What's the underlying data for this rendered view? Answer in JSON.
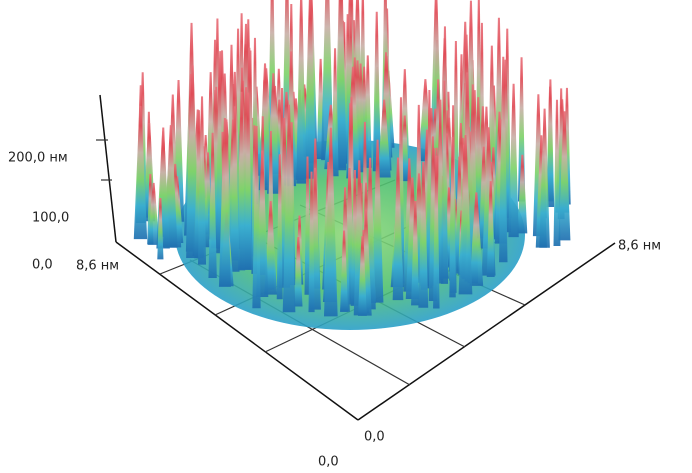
{
  "axes": {
    "z": {
      "ticks": [
        "200,0 нм",
        "100,0",
        "0,0"
      ]
    },
    "y": {
      "end_label": "8,6 нм",
      "start_label": "0,0"
    },
    "x": {
      "end_label": "8,6 нм",
      "start_label": "0,0"
    }
  }
}
